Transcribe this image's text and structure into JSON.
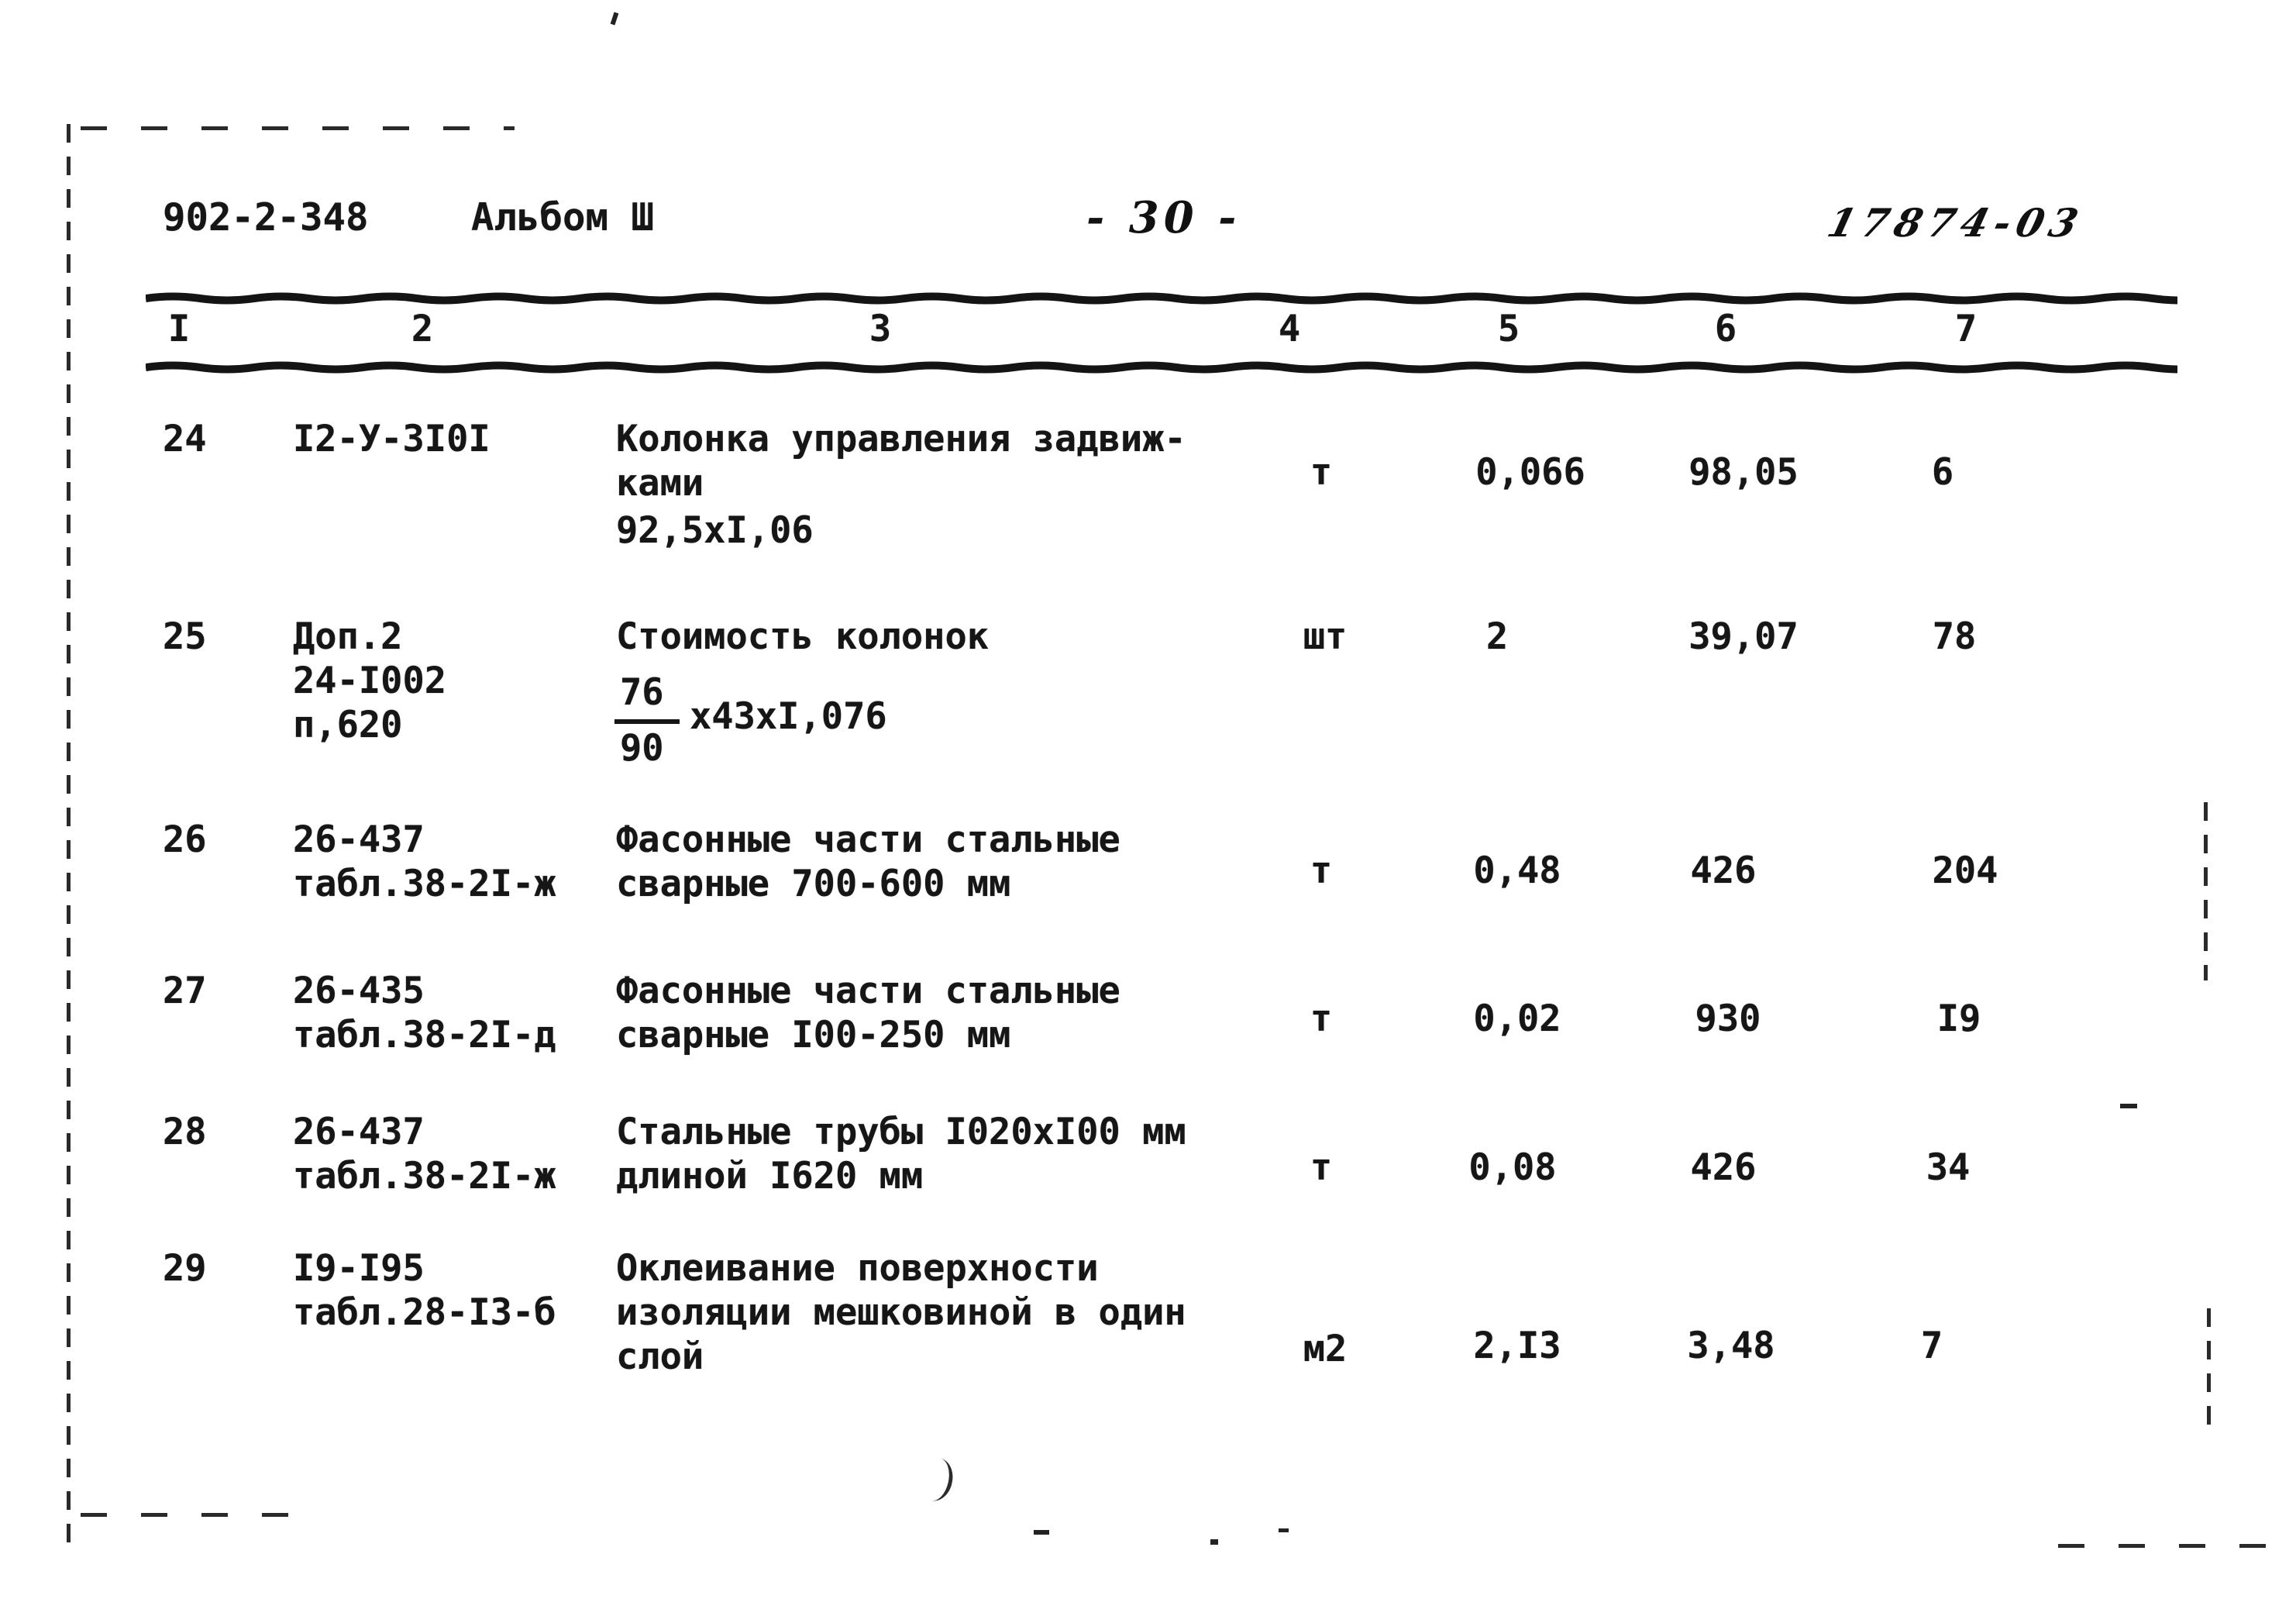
{
  "page": {
    "doc_number": "902-2-348",
    "album_label": "Альбом Ш",
    "page_number": "- 30 -",
    "handwritten_code": "17874-03"
  },
  "table": {
    "column_numbers": [
      "I",
      "2",
      "3",
      "4",
      "5",
      "6",
      "7"
    ],
    "rows": [
      {
        "num": "24",
        "code_lines": [
          "I2-У-3I0I"
        ],
        "desc_lines": [
          "Колонка управления задвиж-",
          "ками"
        ],
        "formula": "92,5хI,06",
        "unit": "т",
        "quantity": "0,066",
        "price": "98,05",
        "total": "6"
      },
      {
        "num": "25",
        "code_lines": [
          "Доп.2",
          "24-I002",
          "п,620"
        ],
        "desc_lines": [
          "Стоимость колонок"
        ],
        "fraction": {
          "numerator": "76",
          "denominator": "90",
          "suffix": "х43хI,076"
        },
        "unit": "шт",
        "quantity": "2",
        "price": "39,07",
        "total": "78"
      },
      {
        "num": "26",
        "code_lines": [
          "26-437",
          "табл.38-2I-ж"
        ],
        "desc_lines": [
          "Фасонные части стальные",
          "сварные 700-600 мм"
        ],
        "unit": "т",
        "quantity": "0,48",
        "price": "426",
        "total": "204"
      },
      {
        "num": "27",
        "code_lines": [
          "26-435",
          "табл.38-2I-д"
        ],
        "desc_lines": [
          "Фасонные части стальные",
          "сварные I00-250 мм"
        ],
        "unit": "т",
        "quantity": "0,02",
        "price": "930",
        "total": "I9"
      },
      {
        "num": "28",
        "code_lines": [
          "26-437",
          "табл.38-2I-ж"
        ],
        "desc_lines": [
          "Стальные трубы I020хI00 мм",
          "длиной I620 мм"
        ],
        "unit": "т",
        "quantity": "0,08",
        "price": "426",
        "total": "34"
      },
      {
        "num": "29",
        "code_lines": [
          "I9-I95",
          "табл.28-I3-б"
        ],
        "desc_lines": [
          "Оклеивание поверхности",
          "изоляции мешковиной в один",
          "слой"
        ],
        "unit": "м2",
        "quantity": "2,I3",
        "price": "3,48",
        "total": "7"
      }
    ]
  }
}
